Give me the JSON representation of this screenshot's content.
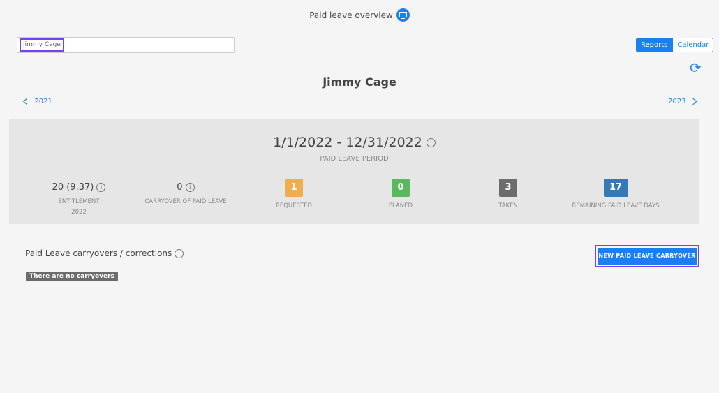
{
  "header": {
    "title": "Paid leave overview",
    "icon": "monitor-icon"
  },
  "search": {
    "value": "Jimmy Cage"
  },
  "view_toggle": {
    "reports": "Reports",
    "calendar": "Calendar",
    "active": "Reports"
  },
  "employee_name": "Jimmy Cage",
  "nav": {
    "prev_year": "2021",
    "next_year": "2023"
  },
  "period": {
    "range": "1/1/2022 - 12/31/2022",
    "label": "PAID LEAVE PERIOD"
  },
  "stats": {
    "entitlement": {
      "value": "20 (9.37)",
      "label": "ENTITLEMENT",
      "sub": "2022"
    },
    "carryover": {
      "value": "0",
      "label": "CARRYOVER OF PAID LEAVE"
    },
    "requested": {
      "value": "1",
      "label": "REQUESTED",
      "color": "#f0ad4e"
    },
    "planed": {
      "value": "0",
      "label": "PLANED",
      "color": "#5cb85c"
    },
    "taken": {
      "value": "3",
      "label": "TAKEN",
      "color": "#6c6c6c"
    },
    "remaining": {
      "value": "17",
      "label": "REMAINING PAID LEAVE DAYS",
      "color": "#337ab7"
    }
  },
  "carryovers": {
    "title": "Paid Leave carryovers / corrections",
    "empty": "There are no carryovers",
    "new_button": "NEW PAID LEAVE CARRYOVER"
  }
}
